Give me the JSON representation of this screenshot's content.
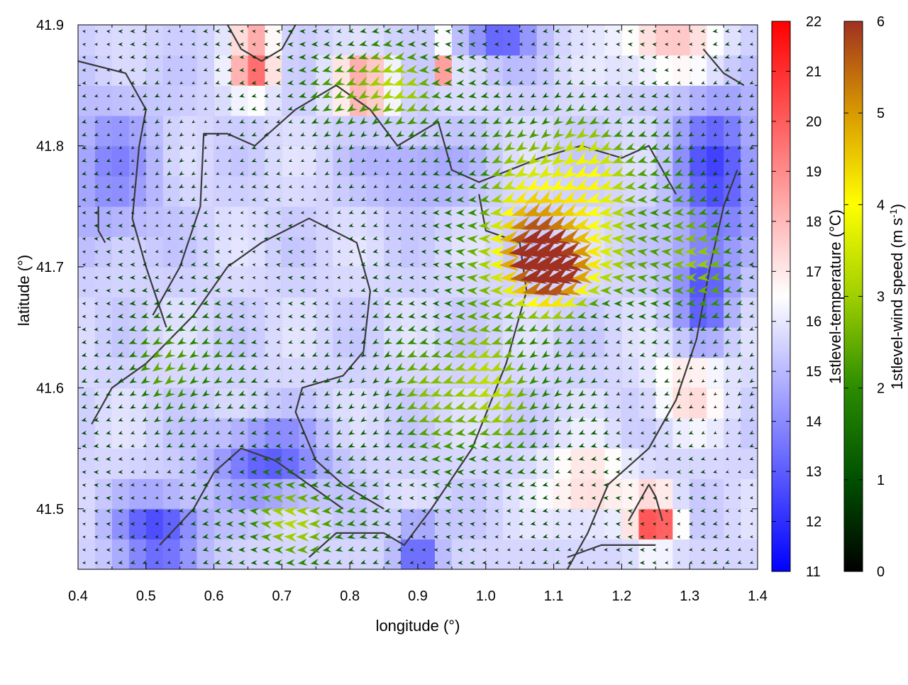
{
  "chart_data": {
    "type": "heatmap",
    "title": "",
    "xlabel": "longitude (°)",
    "ylabel": "latitude (°)",
    "xlim": [
      0.4,
      1.4
    ],
    "ylim": [
      41.45,
      41.9
    ],
    "x_ticks": [
      "0.4",
      "0.5",
      "0.6",
      "0.7",
      "0.8",
      "0.9",
      "1.0",
      "1.1",
      "1.2",
      "1.3",
      "1.4"
    ],
    "x_tick_values": [
      0.4,
      0.5,
      0.6,
      0.7,
      0.8,
      0.9,
      1.0,
      1.1,
      1.2,
      1.3,
      1.4
    ],
    "y_ticks": [
      "41.5",
      "41.6",
      "41.7",
      "41.8",
      "41.9"
    ],
    "y_tick_values": [
      41.5,
      41.6,
      41.7,
      41.8,
      41.9
    ],
    "grid": true,
    "temperature_colorbar": {
      "label": "1stlevel-temperature (°C)",
      "min": 11,
      "max": 22,
      "ticks": [
        "11",
        "12",
        "13",
        "14",
        "15",
        "16",
        "17",
        "18",
        "19",
        "20",
        "21",
        "22"
      ],
      "tick_values": [
        11,
        12,
        13,
        14,
        15,
        16,
        17,
        18,
        19,
        20,
        21,
        22
      ],
      "colors": [
        "#0000ff",
        "#ffffff",
        "#ff0000"
      ]
    },
    "wind_colorbar": {
      "label_main": "1stlevel-wind speed (m s",
      "label_sup": "-1",
      "label_end": ")",
      "min": 0,
      "max": 6,
      "ticks": [
        "0",
        "1",
        "2",
        "3",
        "4",
        "5",
        "6"
      ],
      "tick_values": [
        0,
        1,
        2,
        3,
        4,
        5,
        6
      ],
      "colors": [
        "#000000",
        "#005000",
        "#2a8c00",
        "#9fcf00",
        "#ffff00",
        "#d99a00",
        "#a03020"
      ]
    },
    "temperature_field": {
      "grid_nx": 40,
      "grid_ny": 18,
      "background": 15.6,
      "features": [
        {
          "lon": 0.66,
          "lat": 41.87,
          "dT": 4.2,
          "rlon": 0.03,
          "rlat": 0.025
        },
        {
          "lon": 0.82,
          "lat": 41.85,
          "dT": 3.5,
          "rlon": 0.04,
          "rlat": 0.02
        },
        {
          "lon": 0.94,
          "lat": 41.87,
          "dT": 4.0,
          "rlon": 0.01,
          "rlat": 0.015
        },
        {
          "lon": 1.27,
          "lat": 41.88,
          "dT": 2.5,
          "rlon": 0.07,
          "rlat": 0.02
        },
        {
          "lon": 1.25,
          "lat": 41.49,
          "dT": 5.0,
          "rlon": 0.03,
          "rlat": 0.02
        },
        {
          "lon": 1.15,
          "lat": 41.52,
          "dT": 2.0,
          "rlon": 0.06,
          "rlat": 0.03
        },
        {
          "lon": 1.3,
          "lat": 41.6,
          "dT": 1.8,
          "rlon": 0.05,
          "rlat": 0.03
        },
        {
          "lon": 0.52,
          "lat": 41.48,
          "dT": -3.2,
          "rlon": 0.06,
          "rlat": 0.03
        },
        {
          "lon": 0.68,
          "lat": 41.54,
          "dT": -2.6,
          "rlon": 0.08,
          "rlat": 0.03
        },
        {
          "lon": 0.9,
          "lat": 41.47,
          "dT": -3.0,
          "rlon": 0.03,
          "rlat": 0.02
        },
        {
          "lon": 1.34,
          "lat": 41.78,
          "dT": -3.0,
          "rlon": 0.06,
          "rlat": 0.06
        },
        {
          "lon": 1.32,
          "lat": 41.68,
          "dT": -2.8,
          "rlon": 0.04,
          "rlat": 0.04
        },
        {
          "lon": 1.02,
          "lat": 41.89,
          "dT": -2.5,
          "rlon": 0.05,
          "rlat": 0.02
        },
        {
          "lon": 0.45,
          "lat": 41.78,
          "dT": -1.6,
          "rlon": 0.07,
          "rlat": 0.06
        },
        {
          "lon": 0.9,
          "lat": 41.78,
          "dT": -1.2,
          "rlon": 0.08,
          "rlat": 0.03
        }
      ]
    },
    "wind_field": {
      "grid_nx": 56,
      "grid_ny": 42,
      "mean_direction_deg": 195,
      "base_speed": 0.6,
      "features": [
        {
          "lon": 1.08,
          "lat": 41.72,
          "speed": 3.8,
          "rlon": 0.1,
          "rlat": 0.04
        },
        {
          "lon": 1.1,
          "lat": 41.69,
          "speed": 3.5,
          "rlon": 0.08,
          "rlat": 0.03
        },
        {
          "lon": 1.13,
          "lat": 41.78,
          "speed": 3.0,
          "rlon": 0.14,
          "rlat": 0.05
        },
        {
          "lon": 0.98,
          "lat": 41.6,
          "speed": 2.6,
          "rlon": 0.14,
          "rlat": 0.07
        },
        {
          "lon": 0.72,
          "lat": 41.49,
          "speed": 2.4,
          "rlon": 0.1,
          "rlat": 0.04
        },
        {
          "lon": 0.85,
          "lat": 41.85,
          "speed": 2.5,
          "rlon": 0.12,
          "rlat": 0.04
        },
        {
          "lon": 0.55,
          "lat": 41.62,
          "speed": 1.8,
          "rlon": 0.1,
          "rlat": 0.05
        },
        {
          "lon": 1.3,
          "lat": 41.7,
          "speed": 2.2,
          "rlon": 0.08,
          "rlat": 0.05
        }
      ]
    },
    "coastlines": [
      {
        "points": [
          [
            0.51,
            41.66
          ],
          [
            0.55,
            41.7
          ],
          [
            0.58,
            41.75
          ],
          [
            0.585,
            41.81
          ],
          [
            0.62,
            41.81
          ],
          [
            0.66,
            41.8
          ],
          [
            0.72,
            41.83
          ],
          [
            0.78,
            41.85
          ],
          [
            0.83,
            41.83
          ],
          [
            0.87,
            41.8
          ],
          [
            0.93,
            41.82
          ],
          [
            0.95,
            41.78
          ],
          [
            0.99,
            41.77
          ],
          [
            1.08,
            41.79
          ],
          [
            1.14,
            41.8
          ],
          [
            1.2,
            41.79
          ],
          [
            1.24,
            41.8
          ],
          [
            1.28,
            41.76
          ]
        ]
      },
      {
        "points": [
          [
            0.53,
            41.65
          ],
          [
            0.5,
            41.7
          ],
          [
            0.48,
            41.74
          ],
          [
            0.49,
            41.8
          ],
          [
            0.5,
            41.83
          ],
          [
            0.47,
            41.86
          ],
          [
            0.4,
            41.87
          ]
        ]
      },
      {
        "points": [
          [
            0.42,
            41.57
          ],
          [
            0.45,
            41.6
          ],
          [
            0.5,
            41.62
          ],
          [
            0.57,
            41.66
          ],
          [
            0.62,
            41.7
          ],
          [
            0.67,
            41.72
          ],
          [
            0.74,
            41.74
          ],
          [
            0.81,
            41.72
          ],
          [
            0.83,
            41.68
          ],
          [
            0.82,
            41.63
          ],
          [
            0.79,
            41.61
          ],
          [
            0.73,
            41.6
          ],
          [
            0.72,
            41.58
          ],
          [
            0.75,
            41.54
          ],
          [
            0.79,
            41.52
          ],
          [
            0.85,
            41.5
          ]
        ]
      },
      {
        "points": [
          [
            0.52,
            41.47
          ],
          [
            0.57,
            41.5
          ],
          [
            0.6,
            41.53
          ],
          [
            0.64,
            41.55
          ],
          [
            0.69,
            41.54
          ],
          [
            0.74,
            41.52
          ],
          [
            0.79,
            41.5
          ]
        ]
      },
      {
        "points": [
          [
            0.74,
            41.46
          ],
          [
            0.78,
            41.48
          ],
          [
            0.85,
            41.48
          ],
          [
            0.88,
            41.47
          ],
          [
            0.92,
            41.5
          ],
          [
            0.98,
            41.55
          ],
          [
            1.03,
            41.62
          ],
          [
            1.06,
            41.68
          ],
          [
            1.05,
            41.72
          ],
          [
            1.0,
            41.73
          ],
          [
            0.99,
            41.76
          ]
        ]
      },
      {
        "points": [
          [
            1.12,
            41.45
          ],
          [
            1.15,
            41.48
          ],
          [
            1.18,
            41.52
          ],
          [
            1.24,
            41.55
          ],
          [
            1.28,
            41.59
          ],
          [
            1.31,
            41.64
          ],
          [
            1.33,
            41.7
          ],
          [
            1.35,
            41.75
          ],
          [
            1.37,
            41.78
          ]
        ]
      },
      {
        "points": [
          [
            1.12,
            41.46
          ],
          [
            1.17,
            41.47
          ],
          [
            1.22,
            41.47
          ],
          [
            1.25,
            41.47
          ]
        ]
      },
      {
        "points": [
          [
            1.21,
            41.49
          ],
          [
            1.24,
            41.52
          ],
          [
            1.25,
            41.51
          ],
          [
            1.26,
            41.49
          ]
        ]
      },
      {
        "points": [
          [
            0.62,
            41.9
          ],
          [
            0.64,
            41.88
          ],
          [
            0.67,
            41.87
          ],
          [
            0.7,
            41.88
          ],
          [
            0.72,
            41.9
          ]
        ]
      },
      {
        "points": [
          [
            1.32,
            41.88
          ],
          [
            1.35,
            41.86
          ],
          [
            1.38,
            41.85
          ]
        ]
      },
      {
        "points": [
          [
            0.43,
            41.75
          ],
          [
            0.43,
            41.73
          ],
          [
            0.44,
            41.72
          ]
        ]
      }
    ]
  }
}
